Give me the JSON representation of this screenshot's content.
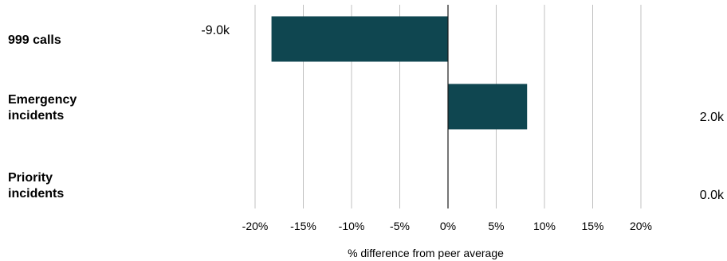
{
  "chart_data": {
    "type": "bar",
    "orientation": "horizontal",
    "categories": [
      [
        "999 calls"
      ],
      [
        "Emergency",
        "incidents"
      ],
      [
        "Priority",
        "incidents"
      ]
    ],
    "values": [
      -18.3,
      8.2,
      0.0
    ],
    "value_labels": [
      "-9.0k",
      "2.0k",
      "0.0k"
    ],
    "xlabel": "% difference from peer average",
    "xlim": [
      -20,
      20
    ],
    "ticks": [
      -20,
      -15,
      -10,
      -5,
      0,
      5,
      10,
      15,
      20
    ],
    "tick_labels": [
      "-20%",
      "-15%",
      "-10%",
      "-5%",
      "0%",
      "5%",
      "10%",
      "15%",
      "20%"
    ],
    "grid": true,
    "bar_color": "#0f4650",
    "grid_color": "#c0c0c0"
  }
}
